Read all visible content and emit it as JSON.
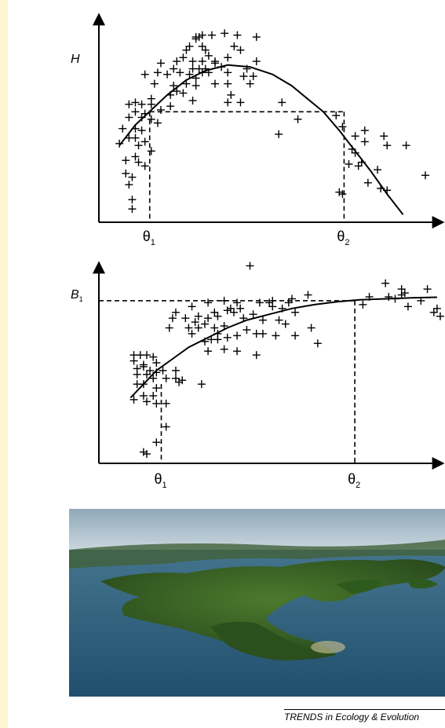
{
  "chart_data": [
    {
      "type": "scatter",
      "title": "",
      "ylabel": "H",
      "xlabel": "",
      "xlim": [
        0,
        100
      ],
      "ylim": [
        0,
        100
      ],
      "x_ticks": [
        {
          "label": "θ",
          "sub": "1",
          "x": 12.5
        },
        {
          "label": "θ",
          "sub": "2",
          "x": 73.5
        }
      ],
      "guides": {
        "y": 57,
        "x_from": 12.5,
        "x_to": 73.5
      },
      "curve": [
        [
          3,
          39
        ],
        [
          8,
          50
        ],
        [
          13,
          58
        ],
        [
          18,
          66
        ],
        [
          24,
          74
        ],
        [
          30,
          79
        ],
        [
          37,
          82
        ],
        [
          44,
          81
        ],
        [
          51,
          77
        ],
        [
          57,
          71
        ],
        [
          62,
          64
        ],
        [
          67,
          57
        ],
        [
          72,
          47
        ],
        [
          77,
          36
        ],
        [
          82,
          25
        ],
        [
          87,
          13
        ],
        [
          92,
          2
        ]
      ],
      "points": [
        [
          27,
          97
        ],
        [
          27,
          96
        ],
        [
          28,
          97
        ],
        [
          29,
          98
        ],
        [
          32,
          98
        ],
        [
          36,
          99
        ],
        [
          40,
          98
        ],
        [
          46,
          97
        ],
        [
          25,
          92
        ],
        [
          29,
          92
        ],
        [
          24,
          90
        ],
        [
          30,
          90
        ],
        [
          39,
          92
        ],
        [
          41,
          90
        ],
        [
          16,
          83
        ],
        [
          21,
          84
        ],
        [
          23,
          86
        ],
        [
          26,
          84
        ],
        [
          29,
          84
        ],
        [
          31,
          87
        ],
        [
          33,
          84
        ],
        [
          37,
          86
        ],
        [
          20,
          80
        ],
        [
          26,
          80
        ],
        [
          28,
          80
        ],
        [
          30,
          80
        ],
        [
          33,
          83
        ],
        [
          35,
          81
        ],
        [
          46,
          84
        ],
        [
          11,
          77
        ],
        [
          15,
          78
        ],
        [
          18,
          77
        ],
        [
          22,
          78
        ],
        [
          25,
          77
        ],
        [
          27,
          75
        ],
        [
          29,
          78
        ],
        [
          31,
          78
        ],
        [
          37,
          78
        ],
        [
          42,
          76
        ],
        [
          43,
          80
        ],
        [
          45,
          76
        ],
        [
          14,
          72
        ],
        [
          20,
          71
        ],
        [
          24,
          72
        ],
        [
          27,
          71
        ],
        [
          33,
          72
        ],
        [
          37,
          72
        ],
        [
          44,
          72
        ],
        [
          37,
          62
        ],
        [
          26,
          63
        ],
        [
          38,
          66
        ],
        [
          41,
          62
        ],
        [
          13,
          64
        ],
        [
          19,
          66
        ],
        [
          21,
          68
        ],
        [
          23,
          67
        ],
        [
          6,
          61
        ],
        [
          8,
          62
        ],
        [
          10,
          61
        ],
        [
          13,
          61
        ],
        [
          16,
          58
        ],
        [
          19,
          60
        ],
        [
          8,
          57
        ],
        [
          11,
          56
        ],
        [
          6,
          54
        ],
        [
          10,
          54
        ],
        [
          13,
          53
        ],
        [
          15,
          51
        ],
        [
          4,
          48
        ],
        [
          8,
          48
        ],
        [
          10,
          47
        ],
        [
          8,
          43
        ],
        [
          11,
          41
        ],
        [
          3,
          40
        ],
        [
          6,
          43
        ],
        [
          9,
          39
        ],
        [
          13,
          36
        ],
        [
          5,
          31
        ],
        [
          8,
          33
        ],
        [
          9,
          30
        ],
        [
          11,
          28
        ],
        [
          5,
          24
        ],
        [
          7,
          22
        ],
        [
          6,
          18
        ],
        [
          7,
          10
        ],
        [
          7,
          5
        ],
        [
          54,
          62
        ],
        [
          59,
          53
        ],
        [
          53,
          45
        ],
        [
          71,
          55
        ],
        [
          73,
          49
        ],
        [
          77,
          44
        ],
        [
          80,
          47
        ],
        [
          80,
          41
        ],
        [
          86,
          44
        ],
        [
          87,
          39
        ],
        [
          76,
          37
        ],
        [
          75,
          29
        ],
        [
          79,
          30
        ],
        [
          77,
          35
        ],
        [
          78,
          28
        ],
        [
          84,
          26
        ],
        [
          93,
          39
        ],
        [
          73,
          13
        ],
        [
          72,
          14
        ],
        [
          85,
          16
        ],
        [
          87,
          15
        ],
        [
          81,
          19
        ],
        [
          99,
          23
        ]
      ]
    },
    {
      "type": "scatter",
      "title": "",
      "ylabel": "B",
      "ylabel_sub": "1",
      "xlabel": "",
      "xlim": [
        0,
        100
      ],
      "ylim": [
        0,
        100
      ],
      "x_ticks": [
        {
          "label": "θ",
          "sub": "1",
          "x": 13.5
        },
        {
          "label": "θ",
          "sub": "2",
          "x": 73.5
        }
      ],
      "guides": {
        "y": 81,
        "x_from": 0,
        "x_to": 73.5
      },
      "curve": [
        [
          4,
          31
        ],
        [
          8,
          38
        ],
        [
          12,
          45
        ],
        [
          17,
          51
        ],
        [
          22,
          57
        ],
        [
          28,
          62
        ],
        [
          34,
          67
        ],
        [
          40,
          71
        ],
        [
          47,
          74
        ],
        [
          54,
          77
        ],
        [
          61,
          79
        ],
        [
          68,
          80.5
        ],
        [
          75,
          81.5
        ],
        [
          83,
          82
        ],
        [
          91,
          82.5
        ],
        [
          99,
          82.8
        ]
      ],
      "points": [
        [
          41,
          99
        ],
        [
          83,
          90
        ],
        [
          88,
          87
        ],
        [
          96,
          87
        ],
        [
          84,
          83
        ],
        [
          88,
          84
        ],
        [
          89,
          85
        ],
        [
          78,
          83
        ],
        [
          86,
          82
        ],
        [
          94,
          81
        ],
        [
          76,
          79
        ],
        [
          90,
          78
        ],
        [
          99,
          77
        ],
        [
          98,
          75
        ],
        [
          100,
          73
        ],
        [
          59,
          84
        ],
        [
          47,
          80
        ],
        [
          53,
          80
        ],
        [
          54,
          82
        ],
        [
          44,
          80
        ],
        [
          48,
          81
        ],
        [
          48,
          78
        ],
        [
          28,
          80
        ],
        [
          33,
          81
        ],
        [
          37,
          80
        ],
        [
          23,
          78
        ],
        [
          18,
          75
        ],
        [
          30,
          75
        ],
        [
          31,
          73
        ],
        [
          34,
          76
        ],
        [
          35,
          77
        ],
        [
          36,
          75
        ],
        [
          38,
          77
        ],
        [
          39,
          72
        ],
        [
          42,
          74
        ],
        [
          45,
          71
        ],
        [
          51,
          77
        ],
        [
          55,
          75
        ],
        [
          17,
          72
        ],
        [
          21,
          72
        ],
        [
          25,
          73
        ],
        [
          28,
          72
        ],
        [
          24,
          70
        ],
        [
          27,
          69
        ],
        [
          16,
          67
        ],
        [
          22,
          67
        ],
        [
          25,
          67
        ],
        [
          30,
          67
        ],
        [
          33,
          68
        ],
        [
          40,
          66
        ],
        [
          50,
          71
        ],
        [
          60,
          67
        ],
        [
          23,
          64
        ],
        [
          29,
          61
        ],
        [
          31,
          64
        ],
        [
          34,
          62
        ],
        [
          37,
          63
        ],
        [
          43,
          64
        ],
        [
          45,
          64
        ],
        [
          52,
          69
        ],
        [
          49,
          63
        ],
        [
          62,
          59
        ],
        [
          55,
          63
        ],
        [
          27,
          60
        ],
        [
          31,
          61
        ],
        [
          28,
          55
        ],
        [
          33,
          56
        ],
        [
          37,
          55
        ],
        [
          43,
          53
        ],
        [
          5,
          53
        ],
        [
          7,
          53
        ],
        [
          9,
          53
        ],
        [
          11,
          52
        ],
        [
          5,
          50
        ],
        [
          8,
          48
        ],
        [
          12,
          49
        ],
        [
          6,
          46
        ],
        [
          8,
          47
        ],
        [
          10,
          45
        ],
        [
          12,
          44
        ],
        [
          14,
          45
        ],
        [
          18,
          45
        ],
        [
          6,
          43
        ],
        [
          9,
          43
        ],
        [
          11,
          41
        ],
        [
          15,
          41
        ],
        [
          18,
          41
        ],
        [
          19,
          39
        ],
        [
          20,
          40
        ],
        [
          26,
          38
        ],
        [
          6,
          38
        ],
        [
          8,
          38
        ],
        [
          12,
          36
        ],
        [
          8,
          32
        ],
        [
          11,
          32
        ],
        [
          5,
          30
        ],
        [
          9,
          29
        ],
        [
          12,
          28
        ],
        [
          15,
          28
        ],
        [
          15,
          16
        ],
        [
          12,
          8
        ],
        [
          8,
          3
        ],
        [
          9,
          2
        ]
      ]
    }
  ],
  "footer": {
    "text": "TRENDS in Ecology & Evolution"
  },
  "photo": {
    "icon": "island-archipelago-photo",
    "sky": "#b7c7d2",
    "water": "#2f6c8e",
    "forest": "#2f5a1e"
  }
}
